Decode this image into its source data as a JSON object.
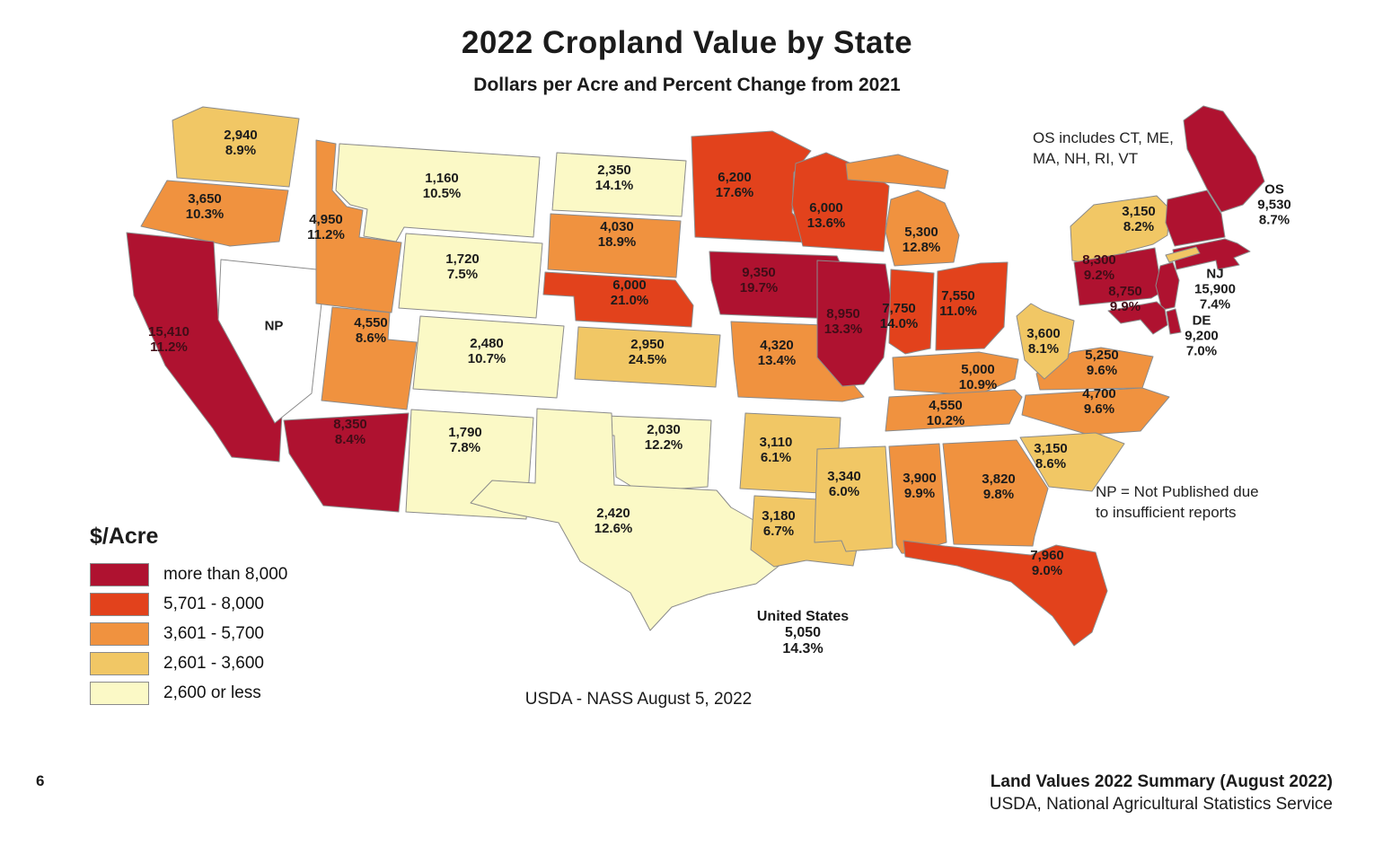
{
  "page_number": "6",
  "title": "2022 Cropland Value by State",
  "subtitle": "Dollars per Acre and Percent Change from 2021",
  "notes": {
    "os": "OS includes CT, ME,\nMA, NH, RI, VT",
    "np": "NP = Not Published due\nto insufficient reports",
    "source": "USDA - NASS August 5, 2022"
  },
  "footer": {
    "line1": "Land Values 2022 Summary (August 2022)",
    "line2": "USDA, National Agricultural Statistics Service"
  },
  "colors": {
    "label": "#1b1b1b",
    "label_on_dark": "#400d17",
    "state_border": "#8b8b8b",
    "background": "#ffffff"
  },
  "chart_data": {
    "type": "heatmap",
    "subtype": "us-choropleth-map",
    "title": "2022 Cropland Value by State",
    "subtitle": "Dollars per Acre and Percent Change from 2021",
    "unit": "dollars per acre",
    "legend_title": "$/Acre",
    "legend_position": "bottom-left",
    "classes": [
      {
        "label": "more than 8,000",
        "color": "#af1230"
      },
      {
        "label": "5,701 - 8,000",
        "color": "#e2421c"
      },
      {
        "label": "3,601 - 5,700",
        "color": "#f0923f"
      },
      {
        "label": "2,601 - 3,600",
        "color": "#f1c765"
      },
      {
        "label": "2,600 or less",
        "color": "#fbf9c6"
      }
    ],
    "not_published_color": "#ffffff",
    "us_total": {
      "label": "United States",
      "value": "5,050",
      "pct_change": "14.3%"
    },
    "states": [
      {
        "id": "WA",
        "value": "2,940",
        "pct_change": "8.9%",
        "class": 3
      },
      {
        "id": "OR",
        "value": "3,650",
        "pct_change": "10.3%",
        "class": 2
      },
      {
        "id": "CA",
        "value": "15,410",
        "pct_change": "11.2%",
        "class": 0
      },
      {
        "id": "NV",
        "value": "NP",
        "pct_change": "",
        "class": "NP"
      },
      {
        "id": "ID",
        "value": "4,950",
        "pct_change": "11.2%",
        "class": 2
      },
      {
        "id": "MT",
        "value": "1,160",
        "pct_change": "10.5%",
        "class": 4
      },
      {
        "id": "WY",
        "value": "1,720",
        "pct_change": "7.5%",
        "class": 4
      },
      {
        "id": "UT",
        "value": "4,550",
        "pct_change": "8.6%",
        "class": 2
      },
      {
        "id": "CO",
        "value": "2,480",
        "pct_change": "10.7%",
        "class": 4
      },
      {
        "id": "AZ",
        "value": "8,350",
        "pct_change": "8.4%",
        "class": 0
      },
      {
        "id": "NM",
        "value": "1,790",
        "pct_change": "7.8%",
        "class": 4
      },
      {
        "id": "ND",
        "value": "2,350",
        "pct_change": "14.1%",
        "class": 4
      },
      {
        "id": "SD",
        "value": "4,030",
        "pct_change": "18.9%",
        "class": 2
      },
      {
        "id": "NE",
        "value": "6,000",
        "pct_change": "21.0%",
        "class": 1
      },
      {
        "id": "KS",
        "value": "2,950",
        "pct_change": "24.5%",
        "class": 3
      },
      {
        "id": "OK",
        "value": "2,030",
        "pct_change": "12.2%",
        "class": 4
      },
      {
        "id": "TX",
        "value": "2,420",
        "pct_change": "12.6%",
        "class": 4
      },
      {
        "id": "MN",
        "value": "6,200",
        "pct_change": "17.6%",
        "class": 1
      },
      {
        "id": "IA",
        "value": "9,350",
        "pct_change": "19.7%",
        "class": 0
      },
      {
        "id": "MO",
        "value": "4,320",
        "pct_change": "13.4%",
        "class": 2
      },
      {
        "id": "AR",
        "value": "3,110",
        "pct_change": "6.1%",
        "class": 3
      },
      {
        "id": "LA",
        "value": "3,180",
        "pct_change": "6.7%",
        "class": 3
      },
      {
        "id": "WI",
        "value": "6,000",
        "pct_change": "13.6%",
        "class": 1
      },
      {
        "id": "MI",
        "value": "5,300",
        "pct_change": "12.8%",
        "class": 2
      },
      {
        "id": "IL",
        "value": "8,950",
        "pct_change": "13.3%",
        "class": 0
      },
      {
        "id": "IN",
        "value": "7,750",
        "pct_change": "14.0%",
        "class": 1
      },
      {
        "id": "OH",
        "value": "7,550",
        "pct_change": "11.0%",
        "class": 1
      },
      {
        "id": "KY",
        "value": "5,000",
        "pct_change": "10.9%",
        "class": 2
      },
      {
        "id": "TN",
        "value": "4,550",
        "pct_change": "10.2%",
        "class": 2
      },
      {
        "id": "MS",
        "value": "3,340",
        "pct_change": "6.0%",
        "class": 3
      },
      {
        "id": "AL",
        "value": "3,900",
        "pct_change": "9.9%",
        "class": 2
      },
      {
        "id": "GA",
        "value": "3,820",
        "pct_change": "9.8%",
        "class": 2
      },
      {
        "id": "FL",
        "value": "7,960",
        "pct_change": "9.0%",
        "class": 1
      },
      {
        "id": "SC",
        "value": "3,150",
        "pct_change": "8.6%",
        "class": 3
      },
      {
        "id": "NC",
        "value": "4,700",
        "pct_change": "9.6%",
        "class": 2
      },
      {
        "id": "VA",
        "value": "5,250",
        "pct_change": "9.6%",
        "class": 2
      },
      {
        "id": "WV",
        "value": "3,600",
        "pct_change": "8.1%",
        "class": 3
      },
      {
        "id": "PA",
        "value": "8,300",
        "pct_change": "9.2%",
        "class": 0
      },
      {
        "id": "NY",
        "value": "3,150",
        "pct_change": "8.2%",
        "class": 3
      },
      {
        "id": "MD",
        "value": "8,750",
        "pct_change": "9.9%",
        "class": 0
      },
      {
        "id": "NJ",
        "prefix": "NJ",
        "value": "15,900",
        "pct_change": "7.4%",
        "class": 0
      },
      {
        "id": "DE",
        "prefix": "DE",
        "value": "9,200",
        "pct_change": "7.0%",
        "class": 0
      },
      {
        "id": "OS",
        "prefix": "OS",
        "value": "9,530",
        "pct_change": "8.7%",
        "class": 0
      }
    ]
  }
}
